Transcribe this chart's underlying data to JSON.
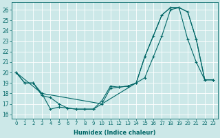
{
  "xlabel": "Humidex (Indice chaleur)",
  "xlim": [
    -0.5,
    23.5
  ],
  "ylim": [
    15.6,
    26.7
  ],
  "yticks": [
    16,
    17,
    18,
    19,
    20,
    21,
    22,
    23,
    24,
    25,
    26
  ],
  "xticks": [
    0,
    1,
    2,
    3,
    4,
    5,
    6,
    7,
    8,
    9,
    10,
    11,
    12,
    13,
    14,
    15,
    16,
    17,
    18,
    19,
    20,
    21,
    22,
    23
  ],
  "bg_color": "#cce8e8",
  "line_color": "#006666",
  "grid_color": "#ffffff",
  "line1_x": [
    0,
    1,
    2,
    3,
    4,
    5,
    6,
    7,
    8,
    9,
    10,
    11,
    12,
    13,
    14,
    15,
    16,
    17,
    18,
    19,
    20,
    21,
    22,
    23
  ],
  "line1_y": [
    20.0,
    19.0,
    19.0,
    18.0,
    16.5,
    16.7,
    16.6,
    16.5,
    16.5,
    16.5,
    17.0,
    18.5,
    18.6,
    18.7,
    19.0,
    19.5,
    21.5,
    23.5,
    26.0,
    26.2,
    23.2,
    21.0,
    19.3,
    19.3
  ],
  "line2_x": [
    0,
    3,
    10,
    14,
    15,
    16,
    17,
    18,
    19,
    20,
    21,
    22,
    23
  ],
  "line2_y": [
    20.0,
    18.0,
    17.0,
    19.0,
    21.5,
    23.5,
    25.5,
    26.2,
    26.2,
    25.8,
    23.2,
    19.3,
    19.3
  ],
  "line3_x": [
    0,
    1,
    2,
    3,
    4,
    5,
    6,
    7,
    8,
    9,
    10,
    11,
    12,
    13,
    14,
    15,
    16,
    17,
    18,
    19,
    20,
    21,
    22,
    23
  ],
  "line3_y": [
    20.0,
    19.0,
    19.0,
    17.8,
    17.6,
    17.0,
    16.6,
    16.5,
    16.5,
    16.5,
    17.3,
    18.7,
    18.6,
    18.7,
    19.0,
    21.5,
    23.5,
    25.5,
    26.2,
    26.2,
    25.8,
    23.2,
    19.3,
    19.3
  ]
}
